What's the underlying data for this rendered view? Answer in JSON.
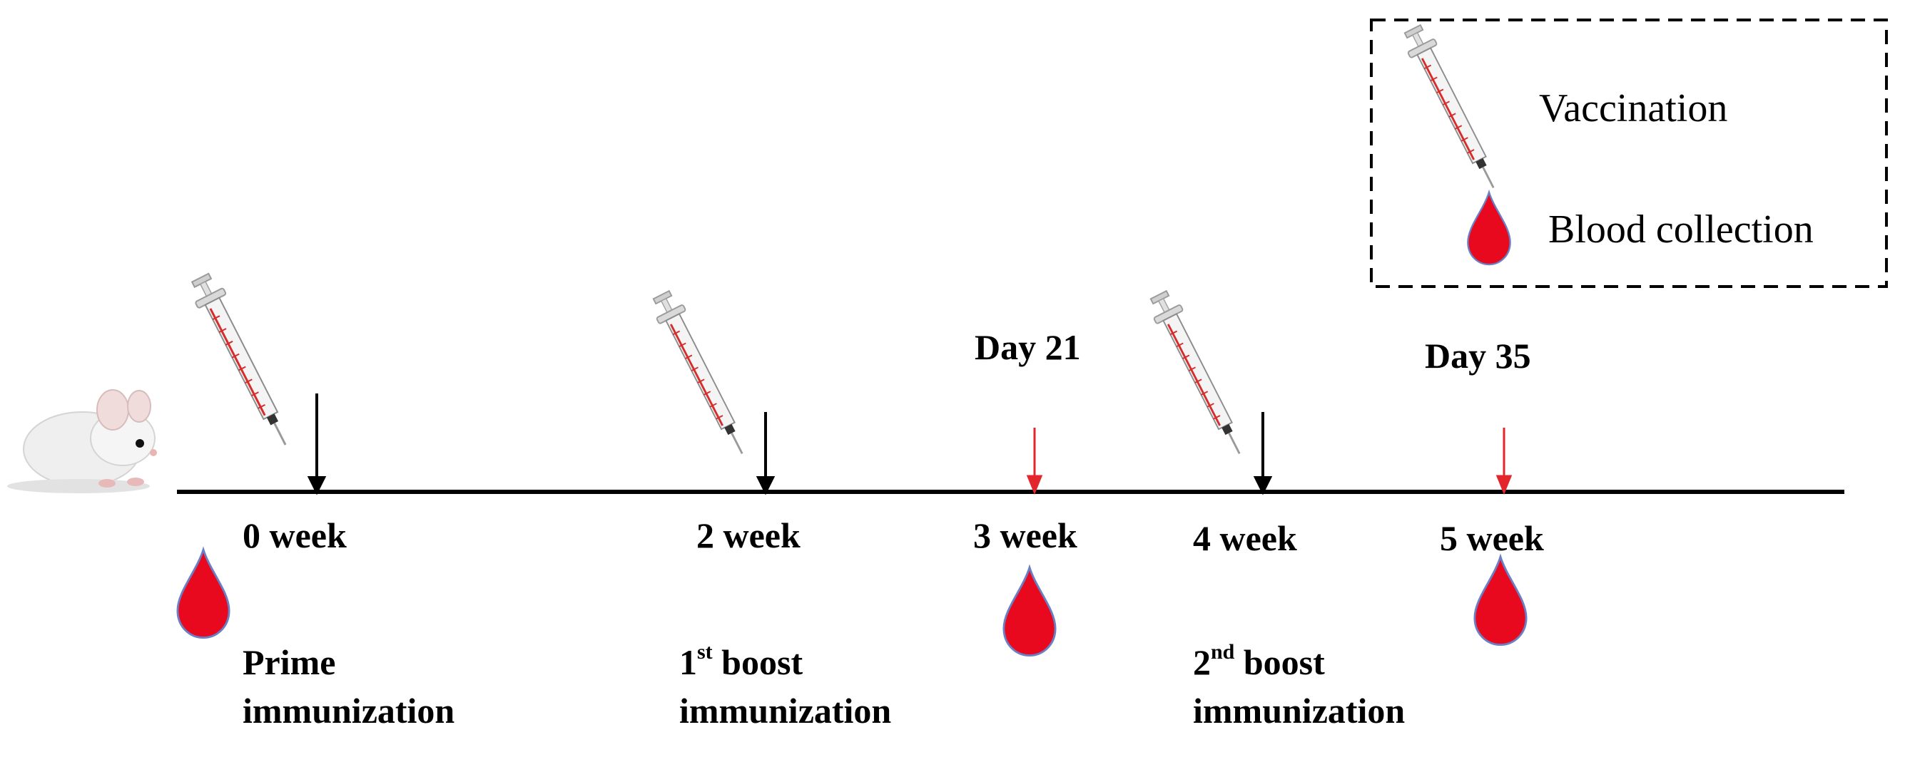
{
  "legend": {
    "vaccination_label": "Vaccination",
    "blood_label": "Blood collection"
  },
  "timeline": {
    "weeks": [
      "0 week",
      "2 week",
      "3 week",
      "4 week",
      "5 week"
    ],
    "days": [
      "Day 21",
      "Day 35"
    ]
  },
  "events": {
    "prime": {
      "line1": "Prime",
      "line2": "immunization"
    },
    "boost1": {
      "num": "1",
      "sup": "st",
      "rest": " boost",
      "line2": "immunization"
    },
    "boost2": {
      "num": "2",
      "sup": "nd",
      "rest": " boost",
      "line2": "immunization"
    }
  },
  "icons": {
    "subject": "mouse-icon",
    "vaccination": "syringe-icon",
    "blood": "blood-drop-icon"
  },
  "colors": {
    "line": "#000000",
    "blood_arrow": "#e3262b",
    "blood_drop": "#e8091e",
    "drop_outline": "#6a7fc4",
    "syringe_red": "#d62c2c"
  }
}
